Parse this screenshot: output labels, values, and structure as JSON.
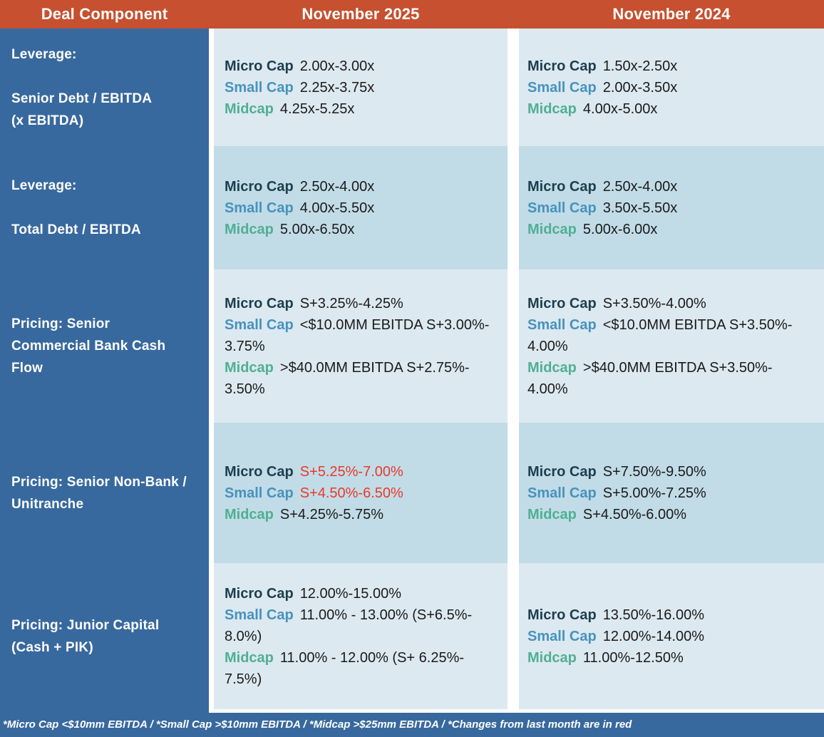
{
  "header": {
    "deal_component": "Deal Component",
    "nov2025": "November 2025",
    "nov2024": "November 2024"
  },
  "rows": [
    {
      "label1": "Leverage:",
      "label2": "Senior Debt / EBITDA\n(x EBITDA)",
      "nov2025": [
        {
          "cap": "Micro Cap",
          "value": "2.00x-3.00x",
          "changed": false
        },
        {
          "cap": "Small Cap",
          "value": "2.25x-3.75x",
          "changed": false
        },
        {
          "cap": "Midcap",
          "value": "4.25x-5.25x",
          "changed": false
        }
      ],
      "nov2024": [
        {
          "cap": "Micro Cap",
          "value": "1.50x-2.50x",
          "changed": false
        },
        {
          "cap": "Small Cap",
          "value": "2.00x-3.50x",
          "changed": false
        },
        {
          "cap": "Midcap",
          "value": "4.00x-5.00x",
          "changed": false
        }
      ]
    },
    {
      "label1": "Leverage:",
      "label2": "Total Debt / EBITDA",
      "nov2025": [
        {
          "cap": "Micro Cap",
          "value": "2.50x-4.00x",
          "changed": false
        },
        {
          "cap": "Small Cap",
          "value": "4.00x-5.50x",
          "changed": false
        },
        {
          "cap": "Midcap",
          "value": "5.00x-6.50x",
          "changed": false
        }
      ],
      "nov2024": [
        {
          "cap": "Micro Cap",
          "value": "2.50x-4.00x",
          "changed": false
        },
        {
          "cap": "Small Cap",
          "value": "3.50x-5.50x",
          "changed": false
        },
        {
          "cap": "Midcap",
          "value": "5.00x-6.00x",
          "changed": false
        }
      ]
    },
    {
      "label1": "Pricing: Senior\nCommercial Bank Cash\nFlow",
      "label2": "",
      "nov2025": [
        {
          "cap": "Micro Cap",
          "value": "S+3.25%-4.25%",
          "changed": false
        },
        {
          "cap": "Small Cap",
          "value": "<$10.0MM EBITDA S+3.00%-\n3.75%",
          "changed": false
        },
        {
          "cap": "Midcap",
          "value": ">$40.0MM EBITDA S+2.75%-\n3.50%",
          "changed": false
        }
      ],
      "nov2024": [
        {
          "cap": "Micro Cap",
          "value": "S+3.50%-4.00%",
          "changed": false
        },
        {
          "cap": "Small Cap",
          "value": "<$10.0MM EBITDA S+3.50%-\n4.00%",
          "changed": false
        },
        {
          "cap": "Midcap",
          "value": ">$40.0MM EBITDA S+3.50%-\n4.00%",
          "changed": false
        }
      ]
    },
    {
      "label1": "Pricing: Senior Non-Bank /\nUnitranche",
      "label2": "",
      "nov2025": [
        {
          "cap": "Micro Cap",
          "value": "S+5.25%-7.00%",
          "changed": true
        },
        {
          "cap": "Small Cap",
          "value": "S+4.50%-6.50%",
          "changed": true
        },
        {
          "cap": "Midcap",
          "value": "S+4.25%-5.75%",
          "changed": false
        }
      ],
      "nov2024": [
        {
          "cap": "Micro Cap",
          "value": "S+7.50%-9.50%",
          "changed": false
        },
        {
          "cap": "Small Cap",
          "value": "S+5.00%-7.25%",
          "changed": false
        },
        {
          "cap": "Midcap",
          "value": "S+4.50%-6.00%",
          "changed": false
        }
      ]
    },
    {
      "label1": "Pricing: Junior Capital\n(Cash + PIK)",
      "label2": "",
      "nov2025": [
        {
          "cap": "Micro Cap",
          "value": "12.00%-15.00%",
          "changed": false
        },
        {
          "cap": "Small Cap",
          "value": "11.00% - 13.00% (S+6.5%-\n8.0%)",
          "changed": false
        },
        {
          "cap": "Midcap",
          "value": "11.00% - 12.00% (S+ 6.25%-\n7.5%)",
          "changed": false
        }
      ],
      "nov2024": [
        {
          "cap": "Micro Cap",
          "value": "13.50%-16.00%",
          "changed": false
        },
        {
          "cap": "Small Cap",
          "value": "12.00%-14.00%",
          "changed": false
        },
        {
          "cap": "Midcap",
          "value": "11.00%-12.50%",
          "changed": false
        }
      ]
    }
  ],
  "footer": {
    "note": "*Micro Cap <$10mm EBITDA / *Small Cap >$10mm EBITDA / *Midcap >$25mm EBITDA / *Changes from last month are in red"
  },
  "colors": {
    "header_bg": "#C6502F",
    "header_text": "#FFFFFF",
    "sidebar_bg": "#38699E",
    "footer_bg": "#38699E",
    "row_light": "#DCE9F1",
    "row_dark": "#C1DCE7",
    "micro_cap": "#1E3E4E",
    "small_cap": "#4792BD",
    "midcap": "#50AF93",
    "changed_red": "#E8392B",
    "value_text": "#1A1A1A"
  }
}
